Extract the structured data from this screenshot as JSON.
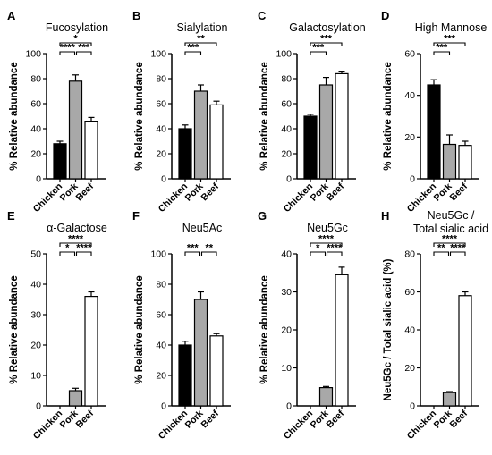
{
  "colors": {
    "chicken": "#000000",
    "pork": "#a8a8a8",
    "beef": "#ffffff",
    "outline": "#000000"
  },
  "chart_data": [
    {
      "letter": "A",
      "title": [
        "Fucosylation"
      ],
      "type": "bar",
      "categories": [
        "Chicken",
        "Pork",
        "Beef"
      ],
      "values": [
        28,
        78,
        46
      ],
      "errors": [
        2,
        5,
        3
      ],
      "ylabel": "% Relative abundance",
      "ylim": [
        0,
        100
      ],
      "yticks": [
        0,
        20,
        40,
        60,
        80,
        100
      ],
      "significance": [
        {
          "from": 0,
          "to": 2,
          "label": "*",
          "level": 3
        },
        {
          "from": 0,
          "to": 1,
          "label": "****",
          "level": 1
        },
        {
          "from": 1,
          "to": 2,
          "label": "***",
          "level": 1
        }
      ]
    },
    {
      "letter": "B",
      "title": [
        "Sialylation"
      ],
      "type": "bar",
      "categories": [
        "Chicken",
        "Pork",
        "Beef"
      ],
      "values": [
        40,
        70,
        59
      ],
      "errors": [
        3,
        5,
        3
      ],
      "ylabel": "% Relative abundance",
      "ylim": [
        0,
        100
      ],
      "yticks": [
        0,
        20,
        40,
        60,
        80,
        100
      ],
      "significance": [
        {
          "from": 0,
          "to": 2,
          "label": "**",
          "level": 3
        },
        {
          "from": 0,
          "to": 1,
          "label": "***",
          "level": 1
        }
      ]
    },
    {
      "letter": "C",
      "title": [
        "Galactosylation"
      ],
      "type": "bar",
      "categories": [
        "Chicken",
        "Pork",
        "Beef"
      ],
      "values": [
        50,
        75,
        84
      ],
      "errors": [
        1.5,
        6,
        2
      ],
      "ylabel": "% Relative abundance",
      "ylim": [
        0,
        100
      ],
      "yticks": [
        0,
        20,
        40,
        60,
        80,
        100
      ],
      "significance": [
        {
          "from": 0,
          "to": 2,
          "label": "***",
          "level": 3
        },
        {
          "from": 0,
          "to": 1,
          "label": "***",
          "level": 1
        }
      ]
    },
    {
      "letter": "D",
      "title": [
        "High Mannose"
      ],
      "type": "bar",
      "categories": [
        "Chicken",
        "Pork",
        "Beef"
      ],
      "values": [
        45,
        16.5,
        16
      ],
      "errors": [
        2.5,
        4.5,
        2
      ],
      "ylabel": "% Relative abundance",
      "ylim": [
        0,
        60
      ],
      "yticks": [
        0,
        20,
        40,
        60
      ],
      "significance": [
        {
          "from": 0,
          "to": 2,
          "label": "***",
          "level": 3
        },
        {
          "from": 0,
          "to": 1,
          "label": "***",
          "level": 1
        }
      ]
    },
    {
      "letter": "E",
      "title": [
        "α-Galactose"
      ],
      "type": "bar",
      "categories": [
        "Chicken",
        "Pork",
        "Beef"
      ],
      "values": [
        0,
        5,
        36
      ],
      "errors": [
        0,
        0.8,
        1.5
      ],
      "ylabel": "% Relative abundance",
      "ylim": [
        0,
        50
      ],
      "yticks": [
        0,
        10,
        20,
        30,
        40,
        50
      ],
      "significance": [
        {
          "from": 0,
          "to": 2,
          "label": "****",
          "level": 3
        },
        {
          "from": 0,
          "to": 1,
          "label": "*",
          "level": 1
        },
        {
          "from": 1,
          "to": 2,
          "label": "****",
          "level": 1
        }
      ]
    },
    {
      "letter": "F",
      "title": [
        "Neu5Ac"
      ],
      "type": "bar",
      "categories": [
        "Chicken",
        "Pork",
        "Beef"
      ],
      "values": [
        40,
        70,
        46
      ],
      "errors": [
        2.5,
        5,
        1.5
      ],
      "ylabel": "% Relative abundance",
      "ylim": [
        0,
        100
      ],
      "yticks": [
        0,
        20,
        40,
        60,
        80,
        100
      ],
      "significance": [
        {
          "from": 0,
          "to": 1,
          "label": "***",
          "level": 1
        },
        {
          "from": 1,
          "to": 2,
          "label": "**",
          "level": 1
        }
      ]
    },
    {
      "letter": "G",
      "title": [
        "Neu5Gc"
      ],
      "type": "bar",
      "categories": [
        "Chicken",
        "Pork",
        "Beef"
      ],
      "values": [
        0,
        4.8,
        34.5
      ],
      "errors": [
        0,
        0.3,
        2
      ],
      "ylabel": "% Relative abundance",
      "ylim": [
        0,
        40
      ],
      "yticks": [
        0,
        10,
        20,
        30,
        40
      ],
      "significance": [
        {
          "from": 0,
          "to": 2,
          "label": "****",
          "level": 3
        },
        {
          "from": 0,
          "to": 1,
          "label": "*",
          "level": 1
        },
        {
          "from": 1,
          "to": 2,
          "label": "****",
          "level": 1
        }
      ]
    },
    {
      "letter": "H",
      "title": [
        "Neu5Gc /",
        "Total sialic acid"
      ],
      "type": "bar",
      "categories": [
        "Chicken",
        "Pork",
        "Beef"
      ],
      "values": [
        0,
        7,
        58
      ],
      "errors": [
        0,
        0.5,
        2
      ],
      "ylabel": "Neu5Gc / Total sialic acid (%)",
      "ylim": [
        0,
        80
      ],
      "yticks": [
        0,
        20,
        40,
        60,
        80
      ],
      "significance": [
        {
          "from": 0,
          "to": 2,
          "label": "****",
          "level": 3
        },
        {
          "from": 0,
          "to": 1,
          "label": "**",
          "level": 1
        },
        {
          "from": 1,
          "to": 2,
          "label": "****",
          "level": 1
        }
      ]
    }
  ]
}
